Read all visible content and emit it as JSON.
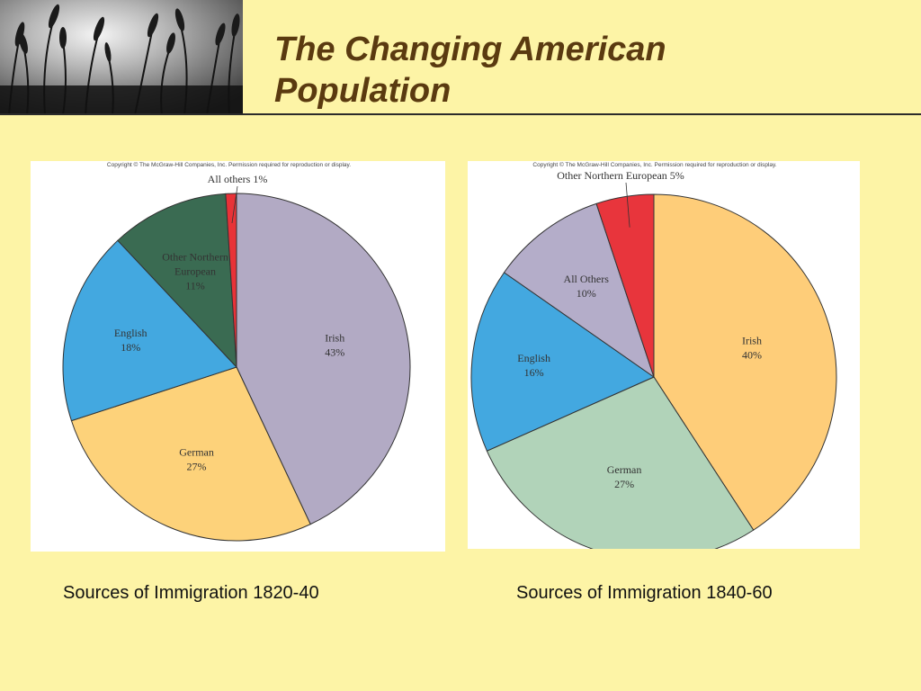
{
  "slide": {
    "title_line1": "The Changing American",
    "title_line2": "Population",
    "background": "#fdf4a6",
    "title_color": "#5a3a10"
  },
  "chart_data": [
    {
      "type": "pie",
      "copyright": "Copyright © The McGraw-Hill Companies, Inc. Permission required for reproduction or display.",
      "caption": "Sources of Immigration 1820-40",
      "slices": [
        {
          "name": "Irish",
          "value": 43,
          "label": "43%",
          "color": "#b2aac4"
        },
        {
          "name": "German",
          "value": 27,
          "label": "27%",
          "color": "#fdd27a"
        },
        {
          "name": "English",
          "value": 18,
          "label": "18%",
          "color": "#43a8e0"
        },
        {
          "name": "Other Northern European",
          "value": 11,
          "label": "11%",
          "color": "#3a6b52",
          "label_lines": [
            "Other Northern",
            "European",
            "11%"
          ]
        },
        {
          "name": "All others",
          "value": 1,
          "label": "All others 1%",
          "color": "#e83238"
        }
      ]
    },
    {
      "type": "pie",
      "copyright": "Copyright © The McGraw-Hill Companies, Inc. Permission required for reproduction or display.",
      "caption": "Sources of Immigration 1840-60",
      "slices": [
        {
          "name": "Irish",
          "value": 40,
          "label": "40%",
          "color": "#fecd79"
        },
        {
          "name": "German",
          "value": 27,
          "label": "27%",
          "color": "#b1d3b9"
        },
        {
          "name": "English",
          "value": 16,
          "label": "16%",
          "color": "#43a8e0"
        },
        {
          "name": "All Others",
          "value": 10,
          "label": "10%",
          "color": "#b4adc9"
        },
        {
          "name": "Other Northern European",
          "value": 5,
          "label": "Other Northern European 5%",
          "color": "#e8353c"
        }
      ]
    }
  ]
}
